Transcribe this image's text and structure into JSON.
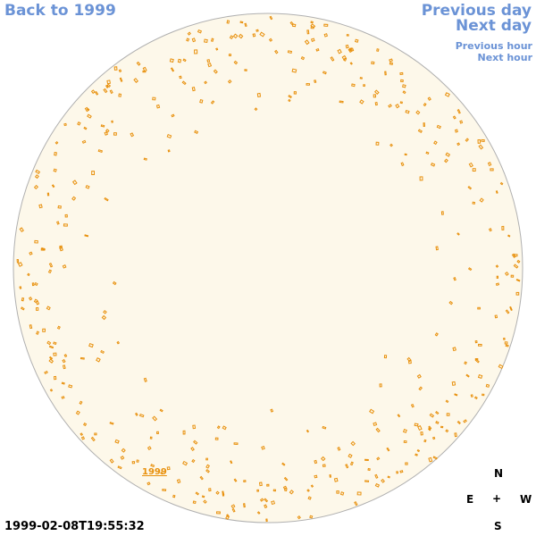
{
  "nav": {
    "back": "Back to 1999",
    "previous_day": "Previous day",
    "next_day": "Next day",
    "previous_hour": "Previous hour",
    "next_hour": "Next hour"
  },
  "sky": {
    "background_color": "#fdf8ea",
    "border_color": "#b0b0b0",
    "marker_color": "#e8900c",
    "year_label": "1999"
  },
  "compass": {
    "north": "N",
    "east": "E",
    "center": "+",
    "west": "W",
    "south": "S"
  },
  "timestamp": "1999-02-08T19:55:32"
}
